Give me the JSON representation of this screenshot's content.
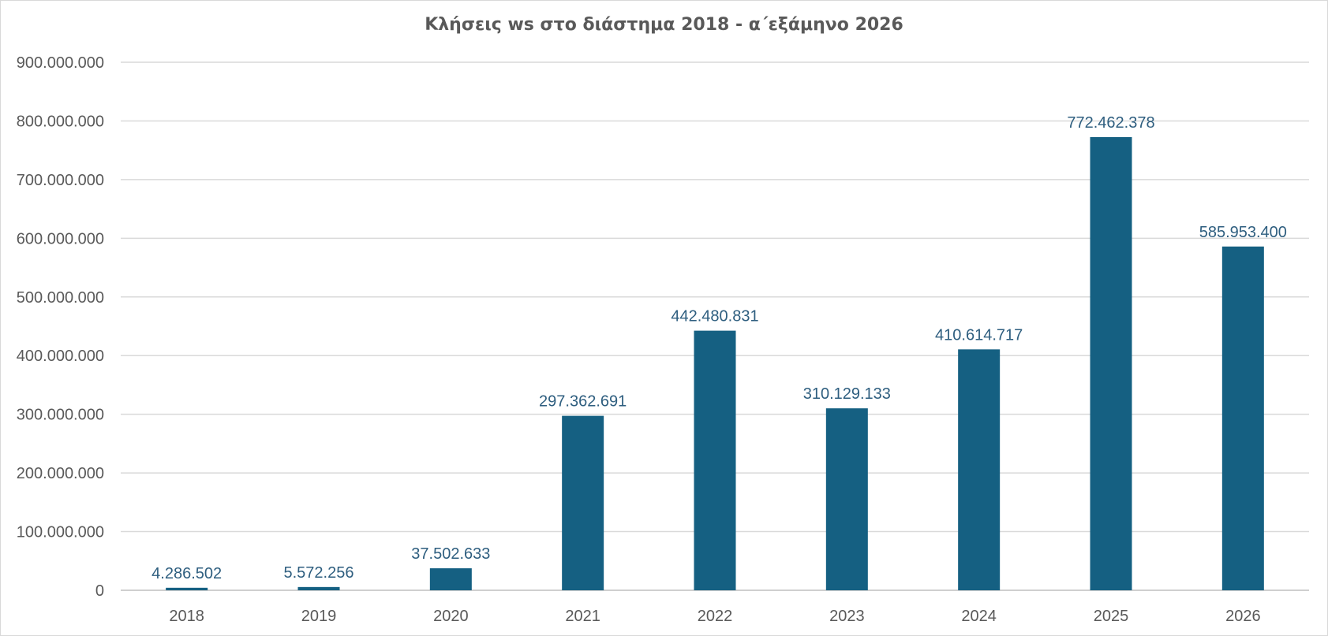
{
  "chart_data": {
    "type": "bar",
    "title": "Κλήσεις ws στο διάστημα 2018 - α΄εξάμηνο 2026",
    "xlabel": "",
    "ylabel": "",
    "categories": [
      "2018",
      "2019",
      "2020",
      "2021",
      "2022",
      "2023",
      "2024",
      "2025",
      "2026"
    ],
    "values": [
      4286502,
      5572256,
      37502633,
      297362691,
      442480831,
      310129133,
      410614717,
      772462378,
      585953400
    ],
    "data_labels": [
      "4.286.502",
      "5.572.256",
      "37.502.633",
      "297.362.691",
      "442.480.831",
      "310.129.133",
      "410.614.717",
      "772.462.378",
      "585.953.400"
    ],
    "ylim": [
      0,
      900000000
    ],
    "yticks": [
      0,
      100000000,
      200000000,
      300000000,
      400000000,
      500000000,
      600000000,
      700000000,
      800000000,
      900000000
    ],
    "ytick_labels": [
      "0",
      "100.000.000",
      "200.000.000",
      "300.000.000",
      "400.000.000",
      "500.000.000",
      "600.000.000",
      "700.000.000",
      "800.000.000",
      "900.000.000"
    ],
    "grid": true,
    "legend": "none",
    "bar_color": "#156082"
  }
}
